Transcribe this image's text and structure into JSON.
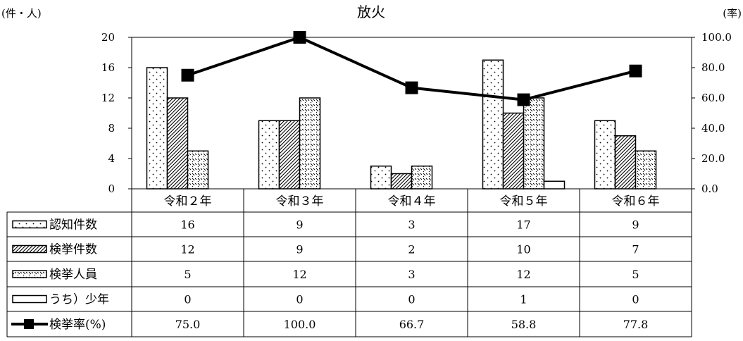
{
  "chart_data": {
    "type": "bar",
    "title": "放火",
    "y_left_unit": "(件・人)",
    "y_right_unit": "(率)",
    "categories": [
      "令和２年",
      "令和３年",
      "令和４年",
      "令和５年",
      "令和６年"
    ],
    "ylim_left": [
      0,
      20
    ],
    "yticks_left": [
      "0",
      "4",
      "8",
      "12",
      "16",
      "20"
    ],
    "ylim_right": [
      0,
      100
    ],
    "yticks_right": [
      "0.0",
      "20.0",
      "40.0",
      "60.0",
      "80.0",
      "100.0"
    ],
    "series": [
      {
        "name": "認知件数",
        "kind": "bar",
        "pattern": "dots",
        "values": [
          16,
          9,
          3,
          17,
          9
        ],
        "labels": [
          "16",
          "9",
          "3",
          "17",
          "9"
        ]
      },
      {
        "name": "検挙件数",
        "kind": "bar",
        "pattern": "diagonal",
        "values": [
          12,
          9,
          2,
          10,
          7
        ],
        "labels": [
          "12",
          "9",
          "2",
          "10",
          "7"
        ]
      },
      {
        "name": "検挙人員",
        "kind": "bar",
        "pattern": "dashes",
        "values": [
          5,
          12,
          3,
          12,
          5
        ],
        "labels": [
          "5",
          "12",
          "3",
          "12",
          "5"
        ]
      },
      {
        "name": "うち）少年",
        "kind": "bar",
        "pattern": "none",
        "values": [
          0,
          0,
          0,
          1,
          0
        ],
        "labels": [
          "0",
          "0",
          "0",
          "1",
          "0"
        ]
      },
      {
        "name": "検挙率(%)",
        "kind": "line",
        "axis": "right",
        "marker": "square",
        "values": [
          75.0,
          100.0,
          66.7,
          58.8,
          77.8
        ],
        "labels": [
          "75.0",
          "100.0",
          "66.7",
          "58.8",
          "77.8"
        ]
      }
    ],
    "grid": false,
    "legend": "table-bottom",
    "colors": {
      "ink": "#000000",
      "fill": "#ffffff"
    }
  }
}
